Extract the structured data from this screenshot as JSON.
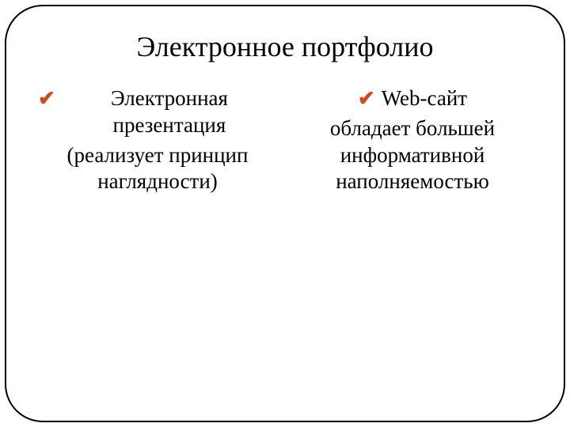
{
  "slide": {
    "title": "Электронное портфолио",
    "columns": [
      {
        "bullet": "Электронная презентация",
        "sub": "(реализует принцип наглядности)"
      },
      {
        "bullet": "Web-сайт",
        "sub": "обладает большей информативной наполняемостью"
      }
    ],
    "check_color": "#d04a1a",
    "border_color": "#000000",
    "background_color": "#ffffff",
    "title_fontsize": 36,
    "body_fontsize": 27,
    "border_radius": 48
  }
}
